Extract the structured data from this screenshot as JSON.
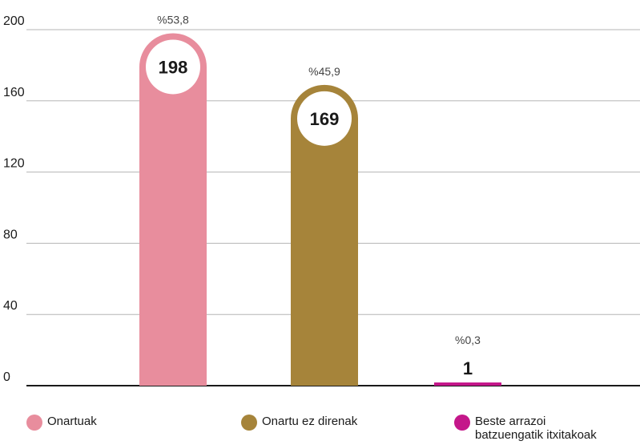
{
  "chart_data": {
    "type": "bar",
    "categories": [
      "Onartuak",
      "Onartu ez direnak",
      "Beste arrazoi batzuengatik itxitakoak"
    ],
    "values": [
      198,
      169,
      1
    ],
    "value_labels": [
      "198",
      "169",
      "1"
    ],
    "percent_labels": [
      "%53,8",
      "%45,9",
      "%0,3"
    ],
    "colors": [
      "#e88d9d",
      "#a6843a",
      "#c4178a"
    ],
    "yticks": [
      "0",
      "40",
      "80",
      "120",
      "160",
      "200"
    ],
    "ylim": [
      0,
      200
    ],
    "grid": true,
    "legend_position": "bottom",
    "title": "",
    "xlabel": "",
    "ylabel": ""
  },
  "legend": [
    {
      "label": "Onartuak",
      "color": "#e88d9d"
    },
    {
      "label": "Onartu ez direnak",
      "color": "#a6843a"
    },
    {
      "label": "Beste arrazoi batzuengatik itxitakoak",
      "color": "#c4178a"
    }
  ]
}
